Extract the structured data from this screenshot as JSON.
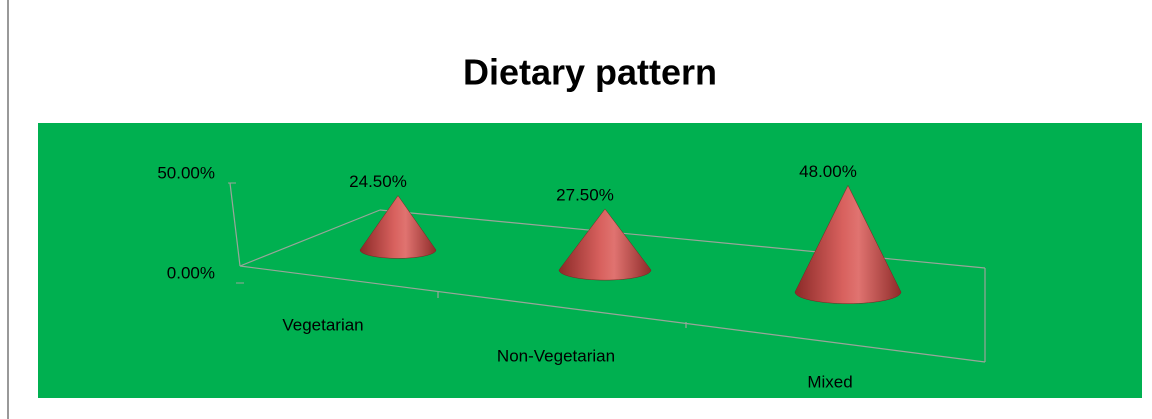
{
  "chart_data": {
    "type": "cone",
    "title": "Dietary pattern",
    "categories": [
      "Vegetarian",
      "Non-Vegetarian",
      "Mixed"
    ],
    "values": [
      24.5,
      27.5,
      48
    ],
    "value_labels": [
      "24.50%",
      "27.50%",
      "48.00%"
    ],
    "color": "#c0504d",
    "background": "#00b050",
    "ylim": [
      0,
      50
    ],
    "yticks": [
      {
        "value": 0,
        "label": "0.00%"
      },
      {
        "value": 50,
        "label": "50.00%"
      }
    ]
  }
}
